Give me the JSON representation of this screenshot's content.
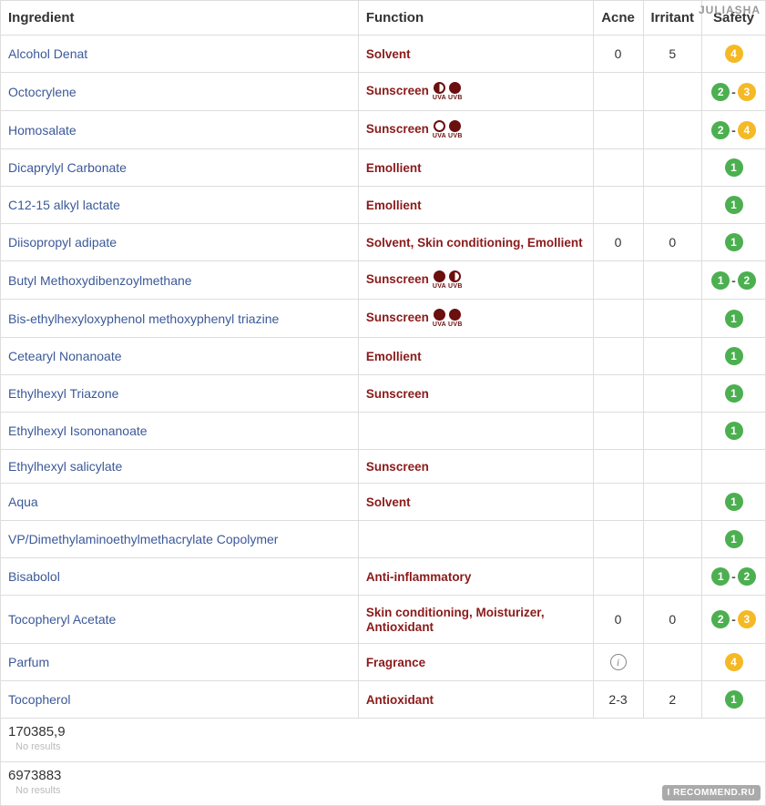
{
  "watermark_user": "JULIASHA",
  "watermark_site": "I RECOMMEND.RU",
  "colors": {
    "link": "#3b5998",
    "function_text": "#8b1a1a",
    "uv_dark": "#6b0f0f",
    "border": "#dddddd",
    "muted": "#bbbbbb",
    "safety_green": "#4caf50",
    "safety_yellow": "#f5b925",
    "safety_orange": "#f59e0b"
  },
  "headers": {
    "ingredient": "Ingredient",
    "function": "Function",
    "acne": "Acne",
    "irritant": "Irritant",
    "safety": "Safety"
  },
  "safety_palette": {
    "1": "#4caf50",
    "2": "#4caf50",
    "3": "#f5b925",
    "4": "#f5b925"
  },
  "rows": [
    {
      "ingredient": "Alcohol Denat",
      "function": "Solvent",
      "uv": [],
      "acne": "0",
      "irritant": "5",
      "safety": [
        "4"
      ]
    },
    {
      "ingredient": "Octocrylene",
      "function": "Sunscreen",
      "uv": [
        {
          "label": "UVA",
          "fill": "half"
        },
        {
          "label": "UVB",
          "fill": "filled"
        }
      ],
      "acne": "",
      "irritant": "",
      "safety": [
        "2",
        "3"
      ]
    },
    {
      "ingredient": "Homosalate",
      "function": "Sunscreen",
      "uv": [
        {
          "label": "UVA",
          "fill": "empty"
        },
        {
          "label": "UVB",
          "fill": "filled"
        }
      ],
      "acne": "",
      "irritant": "",
      "safety": [
        "2",
        "4"
      ]
    },
    {
      "ingredient": "Dicaprylyl Carbonate",
      "function": "Emollient",
      "uv": [],
      "acne": "",
      "irritant": "",
      "safety": [
        "1"
      ]
    },
    {
      "ingredient": "C12-15 alkyl lactate",
      "function": "Emollient",
      "uv": [],
      "acne": "",
      "irritant": "",
      "safety": [
        "1"
      ]
    },
    {
      "ingredient": "Diisopropyl adipate",
      "function": "Solvent, Skin conditioning, Emollient",
      "uv": [],
      "acne": "0",
      "irritant": "0",
      "safety": [
        "1"
      ]
    },
    {
      "ingredient": "Butyl Methoxydibenzoylmethane",
      "function": "Sunscreen",
      "uv": [
        {
          "label": "UVA",
          "fill": "filled"
        },
        {
          "label": "UVB",
          "fill": "half"
        }
      ],
      "acne": "",
      "irritant": "",
      "safety": [
        "1",
        "2"
      ]
    },
    {
      "ingredient": "Bis-ethylhexyloxyphenol methoxyphenyl triazine",
      "function": "Sunscreen",
      "uv": [
        {
          "label": "UVA",
          "fill": "filled"
        },
        {
          "label": "UVB",
          "fill": "filled"
        }
      ],
      "acne": "",
      "irritant": "",
      "safety": [
        "1"
      ]
    },
    {
      "ingredient": "Cetearyl Nonanoate",
      "function": "Emollient",
      "uv": [],
      "acne": "",
      "irritant": "",
      "safety": [
        "1"
      ]
    },
    {
      "ingredient": "Ethylhexyl Triazone",
      "function": "Sunscreen",
      "uv": [],
      "acne": "",
      "irritant": "",
      "safety": [
        "1"
      ]
    },
    {
      "ingredient": "Ethylhexyl Isononanoate",
      "function": "",
      "uv": [],
      "acne": "",
      "irritant": "",
      "safety": [
        "1"
      ]
    },
    {
      "ingredient": "Ethylhexyl salicylate",
      "function": "Sunscreen",
      "uv": [],
      "acne": "",
      "irritant": "",
      "safety": []
    },
    {
      "ingredient": "Aqua",
      "function": "Solvent",
      "uv": [],
      "acne": "",
      "irritant": "",
      "safety": [
        "1"
      ]
    },
    {
      "ingredient": "VP/Dimethylaminoethylmethacrylate Copolymer",
      "function": "",
      "uv": [],
      "acne": "",
      "irritant": "",
      "safety": [
        "1"
      ]
    },
    {
      "ingredient": "Bisabolol",
      "function": "Anti-inflammatory",
      "uv": [],
      "acne": "",
      "irritant": "",
      "safety": [
        "1",
        "2"
      ]
    },
    {
      "ingredient": "Tocopheryl Acetate",
      "function": "Skin conditioning, Moisturizer, Antioxidant",
      "uv": [],
      "acne": "0",
      "irritant": "0",
      "safety": [
        "2",
        "3"
      ]
    },
    {
      "ingredient": "Parfum",
      "function": "Fragrance",
      "uv": [],
      "acne": "info",
      "irritant": "",
      "safety": [
        "4"
      ]
    },
    {
      "ingredient": "Tocopherol",
      "function": "Antioxidant",
      "uv": [],
      "acne": "2-3",
      "irritant": "2",
      "safety": [
        "1"
      ]
    }
  ],
  "no_results_label": "No results",
  "no_results": [
    {
      "code": "170385,9"
    },
    {
      "code": "6973883"
    }
  ]
}
